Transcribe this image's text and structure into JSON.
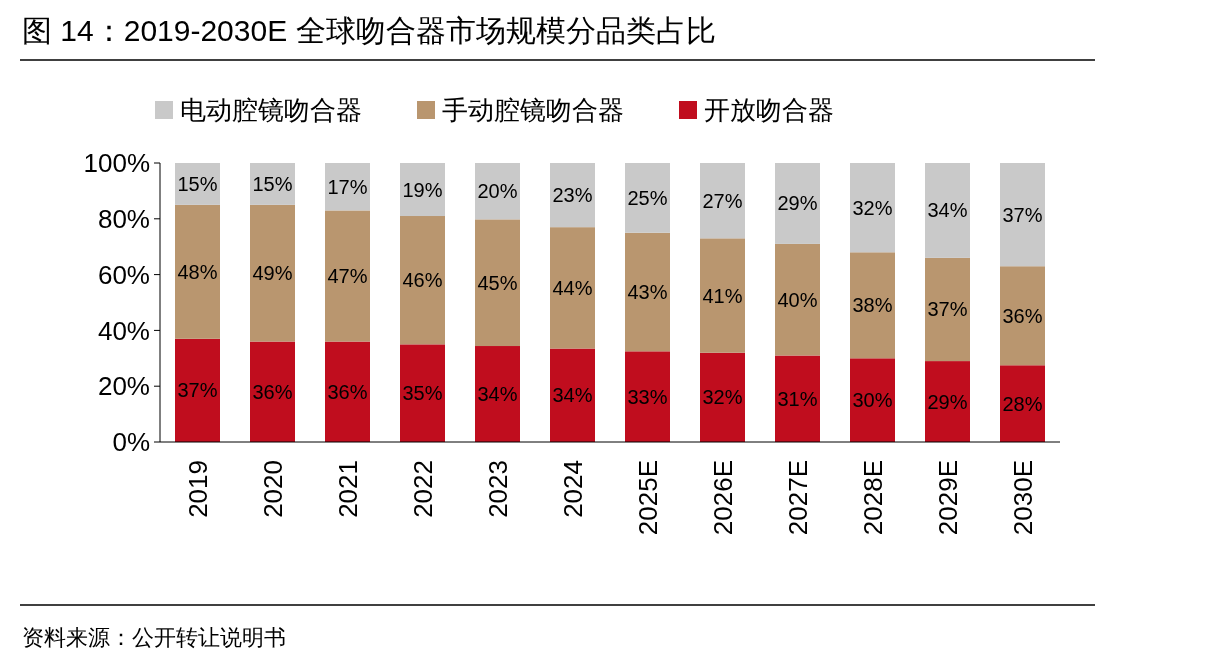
{
  "chart_data": {
    "type": "bar",
    "title": "图 14：2019-2030E 全球吻合器市场规模分品类占比",
    "categories": [
      "2019",
      "2020",
      "2021",
      "2022",
      "2023",
      "2024",
      "2025E",
      "2026E",
      "2027E",
      "2028E",
      "2029E",
      "2030E"
    ],
    "stacked": true,
    "legend": "top",
    "series": [
      {
        "name": "开放吻合器",
        "color": "#c00d1e",
        "values": [
          37,
          36,
          36,
          35,
          34.4,
          33.5,
          32.5,
          32,
          31,
          30,
          29,
          27.5
        ],
        "value_labels": [
          "37%",
          "36%",
          "36%",
          "35%",
          "34%",
          "34%",
          "33%",
          "32%",
          "31%",
          "30%",
          "29%",
          "28%"
        ]
      },
      {
        "name": "手动腔镜吻合器",
        "color": "#b9966f",
        "values": [
          48,
          49,
          47,
          46,
          45.4,
          43.5,
          42.5,
          41,
          40,
          38,
          37,
          35.5
        ],
        "value_labels": [
          "48%",
          "49%",
          "47%",
          "46%",
          "45%",
          "44%",
          "43%",
          "41%",
          "40%",
          "38%",
          "37%",
          "36%"
        ]
      },
      {
        "name": "电动腔镜吻合器",
        "color": "#c9c9c9",
        "values": [
          15,
          15,
          17,
          19,
          20.2,
          23,
          25,
          27,
          29,
          32,
          34,
          37
        ],
        "value_labels": [
          "15%",
          "15%",
          "17%",
          "19%",
          "20%",
          "23%",
          "25%",
          "27%",
          "29%",
          "32%",
          "34%",
          "37%"
        ]
      }
    ],
    "ylim": [
      0,
      100
    ],
    "yticks": [
      {
        "value": 0,
        "label": "0%"
      },
      {
        "value": 20,
        "label": "20%"
      },
      {
        "value": 40,
        "label": "40%"
      },
      {
        "value": 60,
        "label": "60%"
      },
      {
        "value": 80,
        "label": "80%"
      },
      {
        "value": 100,
        "label": "100%"
      }
    ],
    "annotations": [
      "资料来源：公开转让说明书"
    ]
  }
}
